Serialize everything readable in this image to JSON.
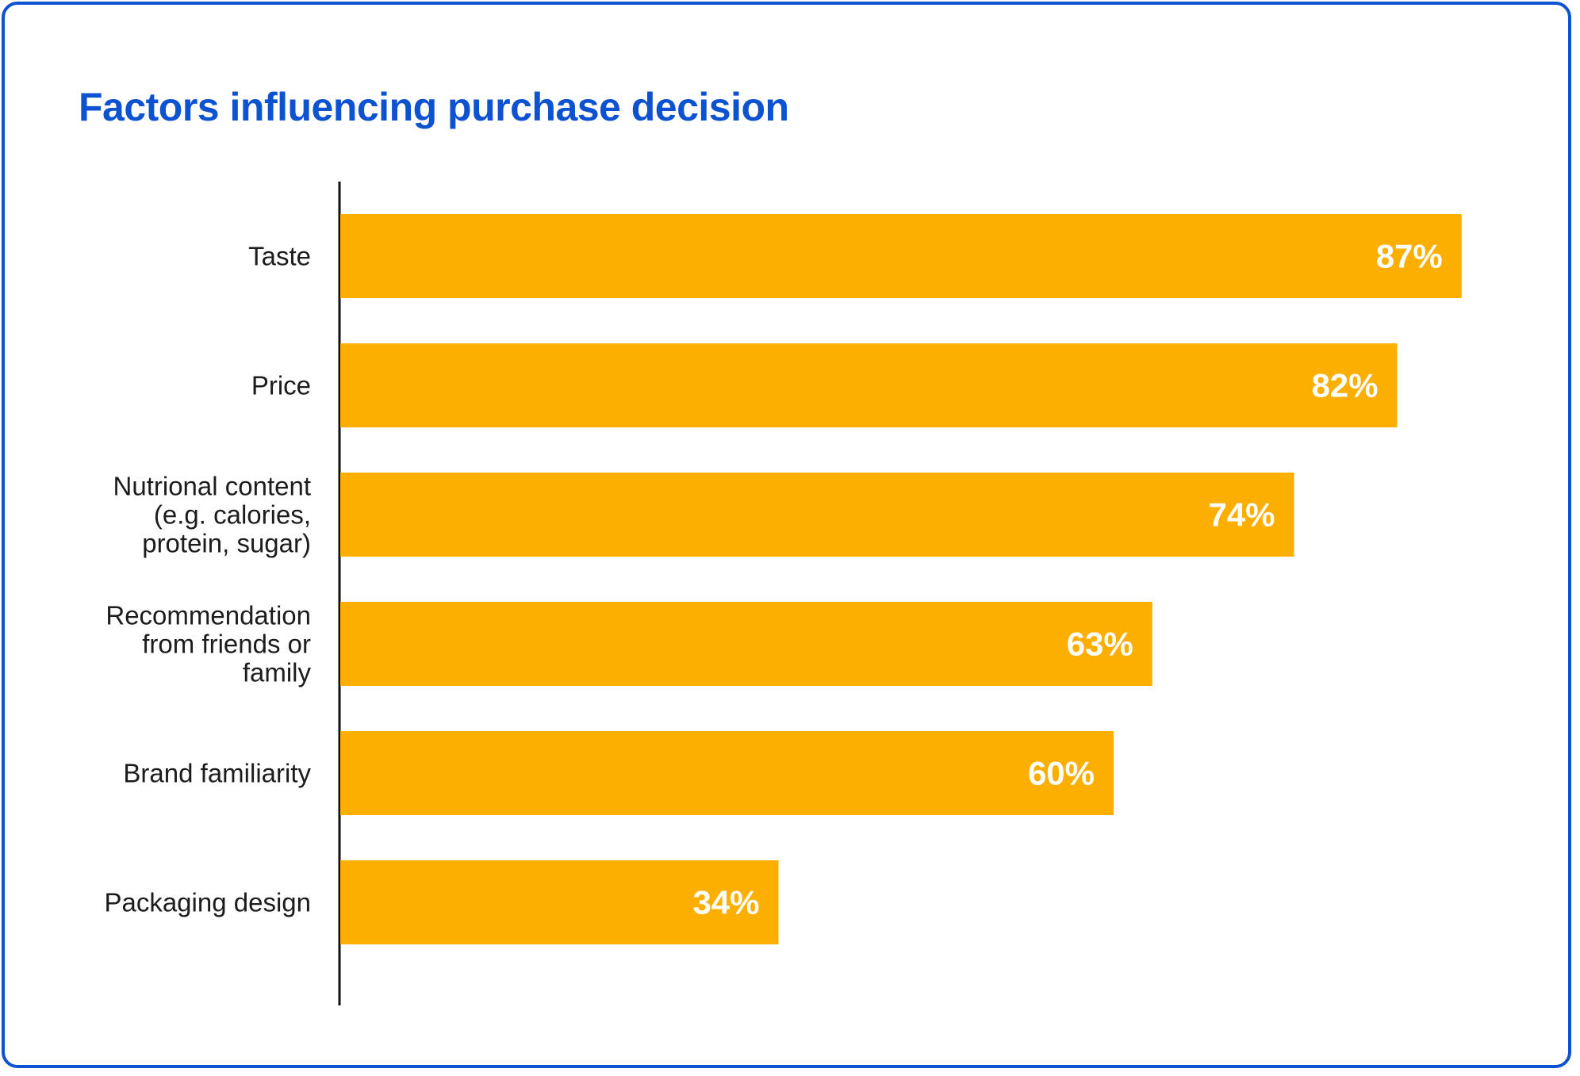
{
  "chart_data": {
    "type": "bar",
    "orientation": "horizontal",
    "title": "Factors influencing purchase decision",
    "categories": [
      [
        "Taste"
      ],
      [
        "Price"
      ],
      [
        "Nutrional content",
        "(e.g. calories,",
        "protein, sugar)"
      ],
      [
        "Recommendation",
        "from friends or",
        "family"
      ],
      [
        "Brand familiarity"
      ],
      [
        "Packaging design"
      ]
    ],
    "values": [
      87,
      82,
      74,
      63,
      60,
      34
    ],
    "value_labels": [
      "87%",
      "82%",
      "74%",
      "63%",
      "60%",
      "34%"
    ],
    "xlim": [
      0,
      100
    ],
    "grid": false,
    "legend": "none"
  },
  "colors": {
    "bar": "#fdaf00",
    "title": "#0d52d0",
    "border": "#0d52d0",
    "axis": "#111111",
    "label": "#1c1c1c",
    "value_label": "#ffffff"
  }
}
